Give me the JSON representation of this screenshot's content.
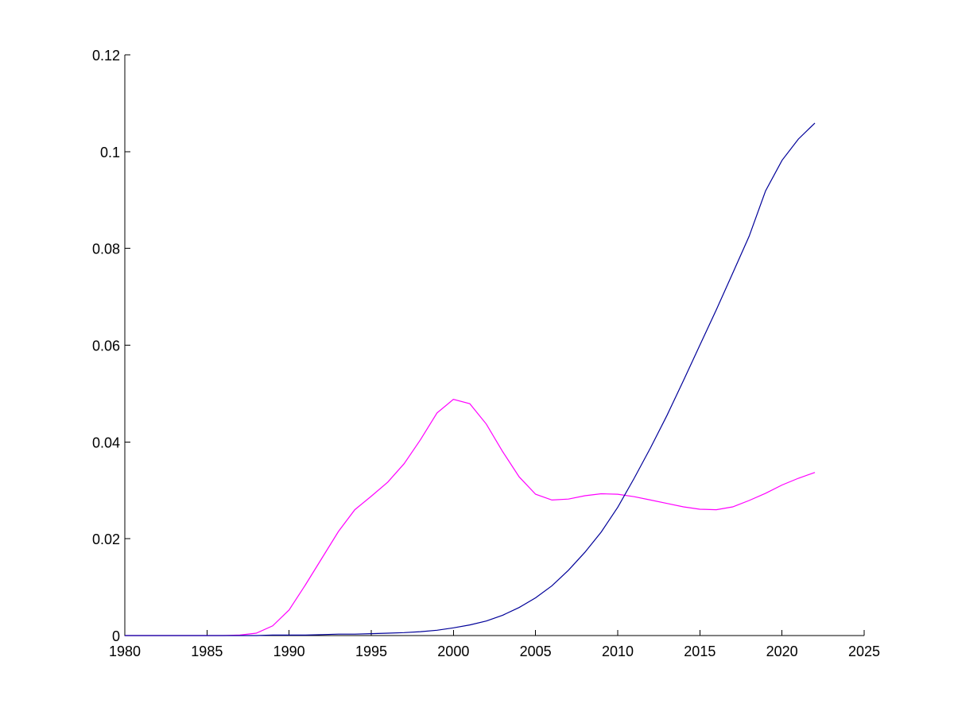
{
  "chart_data": {
    "type": "line",
    "title": "",
    "xlabel": "",
    "ylabel": "",
    "xlim": [
      1980,
      2025
    ],
    "ylim": [
      0,
      0.12
    ],
    "grid": false,
    "x_ticks": [
      1980,
      1985,
      1990,
      1995,
      2000,
      2005,
      2010,
      2015,
      2020,
      2025
    ],
    "y_ticks": [
      0,
      0.02,
      0.04,
      0.06,
      0.08,
      0.1,
      0.12
    ],
    "x_tick_labels": [
      "1980",
      "1985",
      "1990",
      "1995",
      "2000",
      "2005",
      "2010",
      "2015",
      "2020",
      "2025"
    ],
    "y_tick_labels": [
      "0",
      "0.02",
      "0.04",
      "0.06",
      "0.08",
      "0.1",
      "0.12"
    ],
    "series": [
      {
        "color": "#ff00ff",
        "x": [
          1980,
          1981,
          1982,
          1983,
          1984,
          1985,
          1986,
          1987,
          1988,
          1989,
          1990,
          1991,
          1992,
          1993,
          1994,
          1995,
          1996,
          1997,
          1998,
          1999,
          2000,
          2001,
          2002,
          2003,
          2004,
          2005,
          2006,
          2007,
          2008,
          2009,
          2010,
          2011,
          2012,
          2013,
          2014,
          2015,
          2016,
          2017,
          2018,
          2019,
          2020,
          2021,
          2022
        ],
        "values": [
          0,
          0,
          0,
          0,
          0,
          0,
          0,
          0.0001,
          0.0005,
          0.002,
          0.0053,
          0.0105,
          0.016,
          0.0215,
          0.026,
          0.0288,
          0.0317,
          0.0355,
          0.0405,
          0.046,
          0.0488,
          0.0479,
          0.0437,
          0.038,
          0.0328,
          0.0292,
          0.028,
          0.0282,
          0.0289,
          0.0293,
          0.0292,
          0.0287,
          0.028,
          0.0273,
          0.0266,
          0.0261,
          0.026,
          0.0266,
          0.0279,
          0.0294,
          0.0311,
          0.0325,
          0.0337
        ]
      },
      {
        "color": "#000099",
        "x": [
          1980,
          1981,
          1982,
          1983,
          1984,
          1985,
          1986,
          1987,
          1988,
          1989,
          1990,
          1991,
          1992,
          1993,
          1994,
          1995,
          1996,
          1997,
          1998,
          1999,
          2000,
          2001,
          2002,
          2003,
          2004,
          2005,
          2006,
          2007,
          2008,
          2009,
          2010,
          2011,
          2012,
          2013,
          2014,
          2015,
          2016,
          2017,
          2018,
          2019,
          2020,
          2021,
          2022
        ],
        "values": [
          0,
          0,
          0,
          0,
          0,
          0,
          0,
          0,
          0,
          0.0001,
          0.0001,
          0.0001,
          0.0002,
          0.0003,
          0.0003,
          0.0004,
          0.0005,
          0.0006,
          0.0008,
          0.0011,
          0.0016,
          0.0022,
          0.003,
          0.0042,
          0.0058,
          0.0078,
          0.0103,
          0.0135,
          0.0172,
          0.0214,
          0.0265,
          0.0325,
          0.0388,
          0.0455,
          0.0527,
          0.06,
          0.0673,
          0.0749,
          0.0825,
          0.0919,
          0.0982,
          0.1026,
          0.1059
        ]
      }
    ]
  }
}
